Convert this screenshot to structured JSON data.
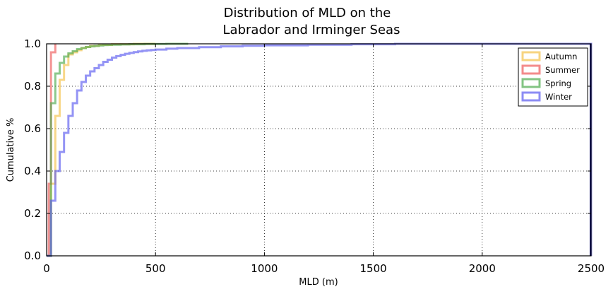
{
  "chart_data": {
    "type": "line",
    "title_lines": [
      "Distribution of MLD on the",
      "Labrador and Irminger Seas"
    ],
    "xlabel": "MLD (m)",
    "ylabel": "Cumulative %",
    "xlim": [
      0,
      2500
    ],
    "ylim": [
      0,
      1.0
    ],
    "xticks": [
      0,
      500,
      1000,
      1500,
      2000,
      2500
    ],
    "xtick_labels": [
      "0",
      "500",
      "1000",
      "1500",
      "2000",
      "2500"
    ],
    "yticks": [
      0.0,
      0.2,
      0.4,
      0.6,
      0.8,
      1.0
    ],
    "ytick_labels": [
      "0.0",
      "0.2",
      "0.4",
      "0.6",
      "0.8",
      "1.0"
    ],
    "grid": true,
    "legend_position": "top-right",
    "series": [
      {
        "name": "Autumn",
        "color": "#f4c24a",
        "x": [
          0,
          20,
          40,
          60,
          80,
          100,
          120,
          140,
          160,
          180,
          200,
          240,
          300,
          400,
          500
        ],
        "y": [
          0,
          0.34,
          0.66,
          0.83,
          0.9,
          0.95,
          0.96,
          0.97,
          0.98,
          0.985,
          0.99,
          0.995,
          0.998,
          1.0,
          1.0
        ]
      },
      {
        "name": "Summer",
        "color": "#ee5a5a",
        "x": [
          0,
          10,
          20,
          40
        ],
        "y": [
          0,
          0.34,
          0.96,
          1.0
        ]
      },
      {
        "name": "Spring",
        "color": "#4fab4f",
        "x": [
          0,
          20,
          40,
          60,
          80,
          100,
          120,
          140,
          160,
          180,
          200,
          220,
          240,
          260,
          280,
          300,
          340,
          380,
          450,
          550,
          650
        ],
        "y": [
          0,
          0.72,
          0.86,
          0.91,
          0.94,
          0.955,
          0.965,
          0.975,
          0.98,
          0.985,
          0.988,
          0.99,
          0.992,
          0.994,
          0.995,
          0.996,
          0.997,
          0.998,
          0.999,
          1.0,
          1.0
        ]
      },
      {
        "name": "Winter",
        "color": "#5b5bf0",
        "x": [
          0,
          20,
          40,
          60,
          80,
          100,
          120,
          140,
          160,
          180,
          200,
          220,
          240,
          260,
          280,
          300,
          320,
          340,
          360,
          380,
          400,
          420,
          440,
          460,
          480,
          500,
          550,
          600,
          700,
          800,
          900,
          1000,
          1200,
          1400,
          1600,
          2500
        ],
        "y": [
          0,
          0.26,
          0.4,
          0.49,
          0.58,
          0.66,
          0.72,
          0.78,
          0.82,
          0.85,
          0.87,
          0.885,
          0.9,
          0.915,
          0.925,
          0.935,
          0.942,
          0.948,
          0.953,
          0.957,
          0.961,
          0.964,
          0.967,
          0.969,
          0.971,
          0.973,
          0.977,
          0.98,
          0.984,
          0.988,
          0.991,
          0.993,
          0.996,
          0.998,
          1.0,
          1.0
        ]
      }
    ]
  }
}
